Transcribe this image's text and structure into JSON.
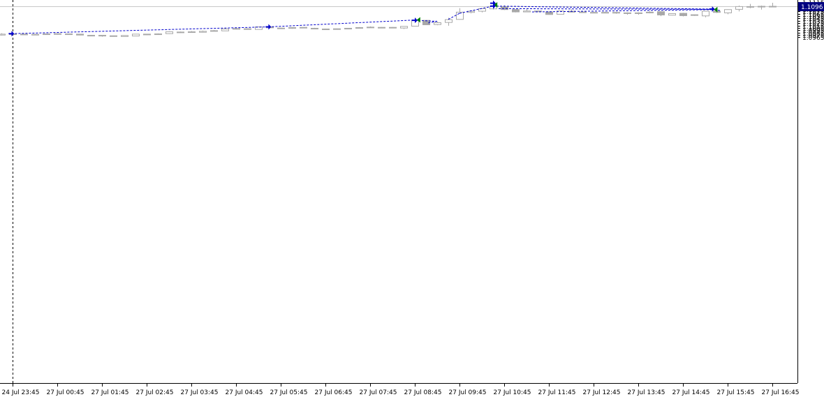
{
  "chart_data": {
    "type": "candlestick",
    "symbol_price_marker": "1.1096",
    "price_range": [
      1.0958,
      1.1117
    ],
    "y_ticks": [
      "1.1115",
      "1.1105",
      "1.1085",
      "1.1075",
      "1.1065",
      "1.1055",
      "1.1045",
      "1.1035",
      "1.1025",
      "1.1015",
      "1.1005",
      "1.0995",
      "1.0985",
      "1.0975",
      "1.0965"
    ],
    "x_ticks": [
      "24 Jul 23:45",
      "27 Jul 00:45",
      "27 Jul 01:45",
      "27 Jul 02:45",
      "27 Jul 03:45",
      "27 Jul 04:45",
      "27 Jul 05:45",
      "27 Jul 06:45",
      "27 Jul 07:45",
      "27 Jul 08:45",
      "27 Jul 09:45",
      "27 Jul 10:45",
      "27 Jul 11:45",
      "27 Jul 12:45",
      "27 Jul 13:45",
      "27 Jul 14:45",
      "27 Jul 15:45",
      "27 Jul 16:45"
    ],
    "current_price": 1.1096,
    "separator_time": "24 Jul 23:45",
    "candles": [
      {
        "o": 1.0974,
        "h": 1.0982,
        "l": 1.0972,
        "c": 1.0978
      },
      {
        "o": 1.0979,
        "h": 1.098,
        "l": 1.0976,
        "c": 1.0976
      },
      {
        "o": 1.0977,
        "h": 1.0978,
        "l": 1.0976,
        "c": 1.0978
      },
      {
        "o": 1.0977,
        "h": 1.0978,
        "l": 1.0976,
        "c": 1.0976
      },
      {
        "o": 1.0977,
        "h": 1.098,
        "l": 1.0975,
        "c": 1.0979
      },
      {
        "o": 1.0978,
        "h": 1.0981,
        "l": 1.0976,
        "c": 1.098
      },
      {
        "o": 1.0979,
        "h": 1.0979,
        "l": 1.0975,
        "c": 1.0977
      },
      {
        "o": 1.0978,
        "h": 1.0978,
        "l": 1.0973,
        "c": 1.0974
      },
      {
        "o": 1.0973,
        "h": 1.0974,
        "l": 1.097,
        "c": 1.0973
      },
      {
        "o": 1.0973,
        "h": 1.0973,
        "l": 1.0967,
        "c": 1.097
      },
      {
        "o": 1.0971,
        "h": 1.0971,
        "l": 1.0968,
        "c": 1.0968
      },
      {
        "o": 1.0968,
        "h": 1.0972,
        "l": 1.0968,
        "c": 1.0972
      },
      {
        "o": 1.097,
        "h": 1.0979,
        "l": 1.0969,
        "c": 1.0978
      },
      {
        "o": 1.0976,
        "h": 1.0979,
        "l": 1.0974,
        "c": 1.0978
      },
      {
        "o": 1.0977,
        "h": 1.0981,
        "l": 1.0976,
        "c": 1.0979
      },
      {
        "o": 1.098,
        "h": 1.099,
        "l": 1.0979,
        "c": 1.0988
      },
      {
        "o": 1.0987,
        "h": 1.0989,
        "l": 1.0983,
        "c": 1.0984
      },
      {
        "o": 1.0985,
        "h": 1.0991,
        "l": 1.0984,
        "c": 1.0988
      },
      {
        "o": 1.0986,
        "h": 1.0993,
        "l": 1.0985,
        "c": 1.099
      },
      {
        "o": 1.0991,
        "h": 1.0996,
        "l": 1.099,
        "c": 1.0993
      },
      {
        "o": 1.0992,
        "h": 1.1003,
        "l": 1.0991,
        "c": 1.1
      },
      {
        "o": 1.1,
        "h": 1.1004,
        "l": 1.0998,
        "c": 1.1002
      },
      {
        "o": 1.1001,
        "h": 1.1002,
        "l": 1.0997,
        "c": 1.1
      },
      {
        "o": 1.0998,
        "h": 1.101,
        "l": 1.0997,
        "c": 1.1009
      },
      {
        "o": 1.1009,
        "h": 1.1014,
        "l": 1.1004,
        "c": 1.1005
      },
      {
        "o": 1.1004,
        "h": 1.1005,
        "l": 1.1,
        "c": 1.1001
      },
      {
        "o": 1.1003,
        "h": 1.1008,
        "l": 1.1001,
        "c": 1.1006
      },
      {
        "o": 1.1007,
        "h": 1.1007,
        "l": 1.1003,
        "c": 1.1004
      },
      {
        "o": 1.1003,
        "h": 1.1005,
        "l": 1.0999,
        "c": 1.1001
      },
      {
        "o": 1.1,
        "h": 1.1001,
        "l": 1.0998,
        "c": 1.1
      },
      {
        "o": 1.1001,
        "h": 1.1002,
        "l": 1.0999,
        "c": 1.1
      },
      {
        "o": 1.1,
        "h": 1.1004,
        "l": 1.0999,
        "c": 1.1003
      },
      {
        "o": 1.1003,
        "h": 1.1008,
        "l": 1.1002,
        "c": 1.1006
      },
      {
        "o": 1.1006,
        "h": 1.1011,
        "l": 1.1005,
        "c": 1.1008
      },
      {
        "o": 1.1007,
        "h": 1.1008,
        "l": 1.1005,
        "c": 1.1006
      },
      {
        "o": 1.1007,
        "h": 1.1008,
        "l": 1.1003,
        "c": 1.1005
      },
      {
        "o": 1.1004,
        "h": 1.1012,
        "l": 1.1,
        "c": 1.1011
      },
      {
        "o": 1.1012,
        "h": 1.1038,
        "l": 1.1011,
        "c": 1.1037
      },
      {
        "o": 1.1037,
        "h": 1.1039,
        "l": 1.1018,
        "c": 1.1018
      },
      {
        "o": 1.1019,
        "h": 1.1031,
        "l": 1.1016,
        "c": 1.1027
      },
      {
        "o": 1.1028,
        "h": 1.1048,
        "l": 1.1014,
        "c": 1.104
      },
      {
        "o": 1.1041,
        "h": 1.1089,
        "l": 1.104,
        "c": 1.1072
      },
      {
        "o": 1.1071,
        "h": 1.108,
        "l": 1.1067,
        "c": 1.1076
      },
      {
        "o": 1.1076,
        "h": 1.1089,
        "l": 1.1071,
        "c": 1.1087
      },
      {
        "o": 1.1086,
        "h": 1.1112,
        "l": 1.1083,
        "c": 1.1097
      },
      {
        "o": 1.1096,
        "h": 1.1101,
        "l": 1.1081,
        "c": 1.1083
      },
      {
        "o": 1.1083,
        "h": 1.1085,
        "l": 1.1071,
        "c": 1.1073
      },
      {
        "o": 1.1073,
        "h": 1.1088,
        "l": 1.1073,
        "c": 1.1077
      },
      {
        "o": 1.1077,
        "h": 1.1078,
        "l": 1.1072,
        "c": 1.1074
      },
      {
        "o": 1.1073,
        "h": 1.1074,
        "l": 1.1061,
        "c": 1.1062
      },
      {
        "o": 1.1063,
        "h": 1.1078,
        "l": 1.1062,
        "c": 1.1077
      },
      {
        "o": 1.1076,
        "h": 1.1084,
        "l": 1.1071,
        "c": 1.1072
      },
      {
        "o": 1.1073,
        "h": 1.1075,
        "l": 1.1069,
        "c": 1.1072
      },
      {
        "o": 1.1071,
        "h": 1.1074,
        "l": 1.1068,
        "c": 1.107
      },
      {
        "o": 1.1071,
        "h": 1.1074,
        "l": 1.1068,
        "c": 1.107
      },
      {
        "o": 1.1071,
        "h": 1.1074,
        "l": 1.1065,
        "c": 1.1069
      },
      {
        "o": 1.1069,
        "h": 1.1071,
        "l": 1.1061,
        "c": 1.1066
      },
      {
        "o": 1.1066,
        "h": 1.1071,
        "l": 1.1061,
        "c": 1.1069
      },
      {
        "o": 1.1069,
        "h": 1.1076,
        "l": 1.1067,
        "c": 1.1072
      },
      {
        "o": 1.1074,
        "h": 1.1076,
        "l": 1.1055,
        "c": 1.106
      },
      {
        "o": 1.1059,
        "h": 1.1067,
        "l": 1.1058,
        "c": 1.1066
      },
      {
        "o": 1.1067,
        "h": 1.1069,
        "l": 1.1054,
        "c": 1.1057
      },
      {
        "o": 1.1058,
        "h": 1.1062,
        "l": 1.1056,
        "c": 1.1061
      },
      {
        "o": 1.1056,
        "h": 1.1077,
        "l": 1.105,
        "c": 1.1076
      },
      {
        "o": 1.1076,
        "h": 1.108,
        "l": 1.1068,
        "c": 1.1071
      },
      {
        "o": 1.1069,
        "h": 1.1084,
        "l": 1.1063,
        "c": 1.1083
      },
      {
        "o": 1.1084,
        "h": 1.11,
        "l": 1.1075,
        "c": 1.1096
      },
      {
        "o": 1.1096,
        "h": 1.1107,
        "l": 1.1089,
        "c": 1.1096
      },
      {
        "o": 1.1095,
        "h": 1.11,
        "l": 1.1083,
        "c": 1.1097
      },
      {
        "o": 1.1096,
        "h": 1.1112,
        "l": 1.1096,
        "c": 1.1097
      }
    ],
    "trade_markers": [
      {
        "index": 0.9,
        "price": 1.098,
        "kind": "entry"
      },
      {
        "index": 23.9,
        "price": 1.1009,
        "kind": "entry"
      },
      {
        "index": 37.0,
        "price": 1.1037,
        "kind": "entry"
      },
      {
        "index": 37.3,
        "price": 1.1039,
        "kind": "exit"
      },
      {
        "index": 44.0,
        "price": 1.111,
        "kind": "entry"
      },
      {
        "index": 44.2,
        "price": 1.1103,
        "kind": "exit"
      },
      {
        "index": 44.0,
        "price": 1.1098,
        "kind": "entry"
      },
      {
        "index": 63.6,
        "price": 1.1085,
        "kind": "entry"
      },
      {
        "index": 63.9,
        "price": 1.1083,
        "kind": "exit"
      }
    ],
    "trade_lines": [
      {
        "from": [
          0.9,
          1.098
        ],
        "to": [
          23.9,
          1.1009
        ]
      },
      {
        "from": [
          23.9,
          1.1009
        ],
        "to": [
          37.3,
          1.1039
        ]
      },
      {
        "from": [
          37.0,
          1.1037
        ],
        "to": [
          39.0,
          1.1033
        ]
      },
      {
        "from": [
          39.0,
          1.1033
        ],
        "to": [
          38.2,
          1.1026
        ]
      },
      {
        "from": [
          40.0,
          1.1041
        ],
        "to": [
          41.0,
          1.1067
        ]
      },
      {
        "from": [
          41.0,
          1.1067
        ],
        "to": [
          44.0,
          1.1098
        ]
      },
      {
        "from": [
          44.0,
          1.1098
        ],
        "to": [
          63.6,
          1.1085
        ]
      },
      {
        "from": [
          44.5,
          1.1087
        ],
        "to": [
          63.6,
          1.1084
        ]
      },
      {
        "from": [
          47.5,
          1.1073
        ],
        "to": [
          63.9,
          1.1083
        ]
      },
      {
        "from": [
          63.9,
          1.1083
        ],
        "to": [
          64.3,
          1.1079
        ]
      },
      {
        "from": [
          64.3,
          1.1079
        ],
        "to": [
          63.6,
          1.1085
        ]
      }
    ]
  }
}
